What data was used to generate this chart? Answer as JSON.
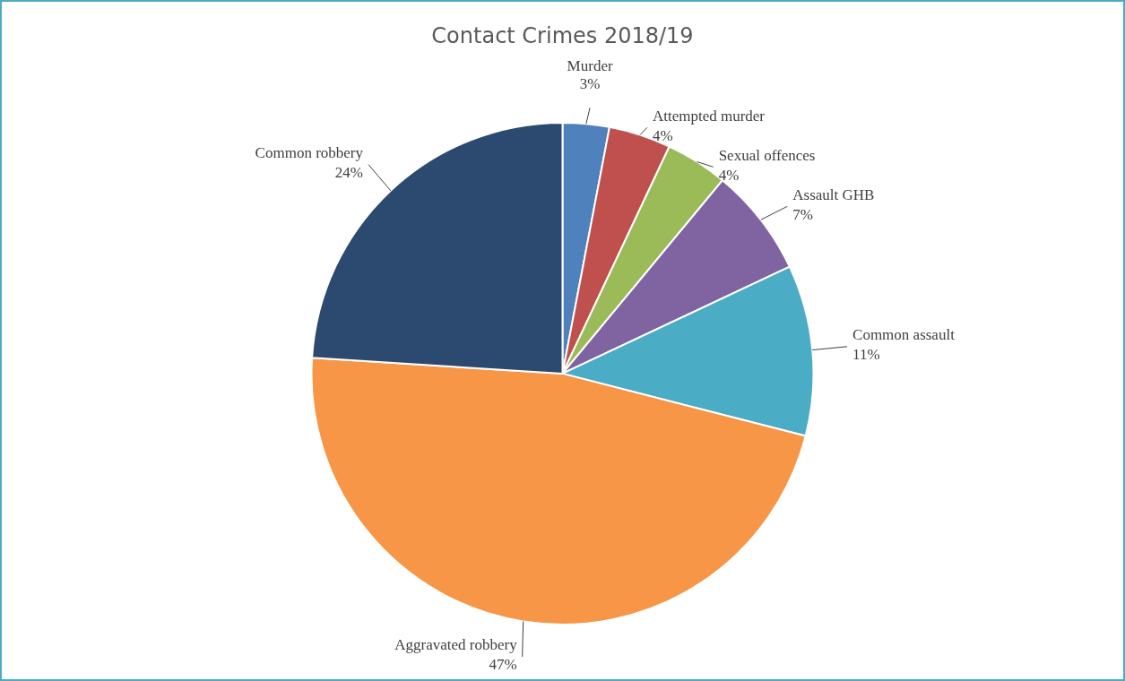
{
  "chart_data": {
    "type": "pie",
    "title": "Contact Crimes 2018/19",
    "categories": [
      "Murder",
      "Attempted murder",
      "Sexual offences",
      "Assault GHB",
      "Common assault",
      "Aggravated robbery",
      "Common robbery"
    ],
    "values": [
      3,
      4,
      4,
      7,
      11,
      47,
      24
    ],
    "colors": [
      "#4f81bd",
      "#c0504d",
      "#9bbb59",
      "#8064a2",
      "#4bacc6",
      "#f79646",
      "#2c4a70"
    ],
    "value_labels": [
      "3%",
      "4%",
      "4%",
      "7%",
      "11%",
      "47%",
      "24%"
    ],
    "legend": false
  }
}
